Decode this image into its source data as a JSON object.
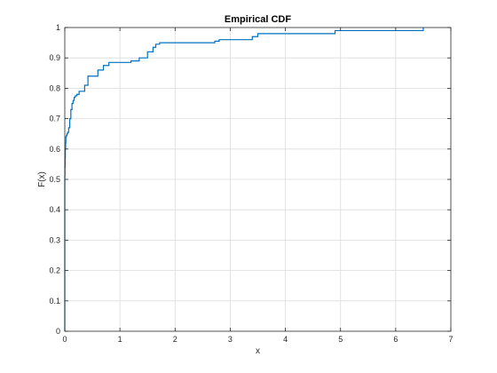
{
  "chart_data": {
    "type": "line",
    "title": "Empirical CDF",
    "xlabel": "x",
    "ylabel": "F(x)",
    "xlim": [
      0,
      7
    ],
    "ylim": [
      0,
      1
    ],
    "xticks": [
      "0",
      "1",
      "2",
      "3",
      "4",
      "5",
      "6",
      "7"
    ],
    "yticks": [
      "0",
      "0.1",
      "0.2",
      "0.3",
      "0.4",
      "0.5",
      "0.6",
      "0.7",
      "0.8",
      "0.9",
      "1"
    ],
    "grid": true,
    "line_color": "#0072BD",
    "step": true,
    "series": [
      {
        "x": [
          0,
          0,
          0.003,
          0.006,
          0.01,
          0.015,
          0.02,
          0.03,
          0.04,
          0.05,
          0.07,
          0.09,
          0.11,
          0.13,
          0.15,
          0.17,
          0.19,
          0.22,
          0.26,
          0.3,
          0.36,
          0.42,
          0.5,
          0.6,
          0.7,
          0.8,
          1.0,
          1.2,
          1.35,
          1.5,
          1.6,
          1.65,
          1.72,
          2.72,
          2.8,
          3.4,
          3.5,
          4.9,
          6.5,
          6.5
        ],
        "y": [
          0,
          0.51,
          0.54,
          0.57,
          0.6,
          0.62,
          0.64,
          0.645,
          0.65,
          0.655,
          0.67,
          0.7,
          0.73,
          0.75,
          0.76,
          0.77,
          0.775,
          0.78,
          0.79,
          0.79,
          0.81,
          0.84,
          0.84,
          0.86,
          0.875,
          0.885,
          0.885,
          0.89,
          0.9,
          0.92,
          0.935,
          0.945,
          0.95,
          0.955,
          0.96,
          0.97,
          0.98,
          0.99,
          0.995,
          1.0
        ]
      }
    ]
  }
}
